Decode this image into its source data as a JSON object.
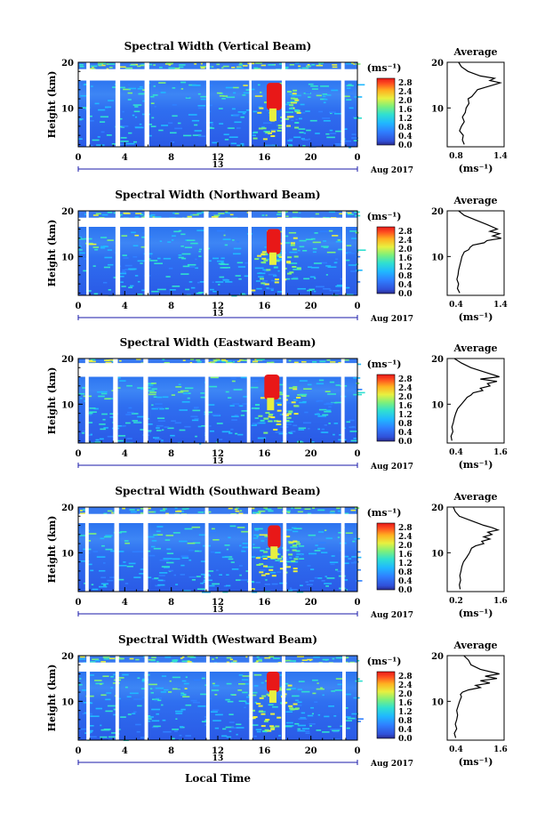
{
  "figure": {
    "xlabel": "Local Time",
    "date_label": "Aug 2017",
    "xticks": [
      "0",
      "4",
      "8",
      "12",
      "16",
      "20",
      "0"
    ],
    "xticks_values": [
      0,
      4,
      8,
      12,
      16,
      20,
      24
    ],
    "day_marker": "13",
    "ylabel": "Height (km)",
    "yticks": [
      "10",
      "20"
    ],
    "colorbar_unit": "(ms⁻¹)",
    "colorbar_ticks": [
      "2.8",
      "2.4",
      "2.0",
      "1.6",
      "1.2",
      "0.8",
      "0.4",
      "0.0"
    ],
    "colorbar_range": [
      0.0,
      3.0
    ],
    "average_title": "Average",
    "average_unit": "(ms⁻¹)",
    "average_yticks": [
      "10",
      "20"
    ]
  },
  "chart_data": [
    {
      "type": "heatmap",
      "title": "Spectral Width (Vertical Beam)",
      "xlabel": "Local Time",
      "ylabel": "Height (km)",
      "xlim": [
        0,
        24
      ],
      "ylim": [
        1.5,
        20
      ],
      "data_gaps_hours": [
        [
          0.7,
          1.0
        ],
        [
          3.2,
          3.6
        ],
        [
          5.7,
          6.1
        ],
        [
          11.0,
          11.3
        ],
        [
          14.7,
          14.9
        ],
        [
          17.5,
          17.8
        ],
        [
          22.6,
          22.9
        ]
      ],
      "no_echo_band_km": [
        16.0,
        18.5
      ],
      "high_width_feature": {
        "time_hours": [
          16.2,
          17.5
        ],
        "height_km": [
          9.5,
          15.5
        ],
        "value": 2.8
      },
      "colorbar": {
        "label": "(ms⁻¹)",
        "min": 0.0,
        "max": 3.0
      }
    },
    {
      "type": "heatmap",
      "title": "Spectral Width (Northward Beam)",
      "xlabel": "Local Time",
      "ylabel": "Height (km)",
      "xlim": [
        0,
        24
      ],
      "ylim": [
        1.5,
        20
      ],
      "data_gaps_hours": [
        [
          0.7,
          0.9
        ],
        [
          3.2,
          3.6
        ],
        [
          5.7,
          6.1
        ],
        [
          10.8,
          11.2
        ],
        [
          14.6,
          14.9
        ],
        [
          17.5,
          17.8
        ],
        [
          22.7,
          23.0
        ]
      ],
      "no_echo_band_km": [
        16.5,
        18.5
      ],
      "high_width_feature": {
        "time_hours": [
          16.2,
          17.4
        ],
        "height_km": [
          10.5,
          16.0
        ],
        "value": 2.8
      },
      "colorbar": {
        "label": "(ms⁻¹)",
        "min": 0.0,
        "max": 3.0
      }
    },
    {
      "type": "heatmap",
      "title": "Spectral Width (Eastward Beam)",
      "xlabel": "Local Time",
      "ylabel": "Height (km)",
      "xlim": [
        0,
        24
      ],
      "ylim": [
        1.5,
        20
      ],
      "data_gaps_hours": [
        [
          0.6,
          0.9
        ],
        [
          3.0,
          3.4
        ],
        [
          5.6,
          6.0
        ],
        [
          10.9,
          11.2
        ],
        [
          14.5,
          14.8
        ],
        [
          17.6,
          17.9
        ],
        [
          22.6,
          22.9
        ]
      ],
      "no_echo_band_km": [
        16.0,
        19.0
      ],
      "high_width_feature": {
        "time_hours": [
          16.0,
          17.3
        ],
        "height_km": [
          11.0,
          16.5
        ],
        "value": 2.8
      },
      "colorbar": {
        "label": "(ms⁻¹)",
        "min": 0.0,
        "max": 3.0
      }
    },
    {
      "type": "heatmap",
      "title": "Spectral Width (Southward Beam)",
      "xlabel": "Local Time",
      "ylabel": "Height (km)",
      "xlim": [
        0,
        24
      ],
      "ylim": [
        1.5,
        20
      ],
      "data_gaps_hours": [
        [
          0.6,
          0.9
        ],
        [
          3.1,
          3.5
        ],
        [
          5.6,
          6.0
        ],
        [
          10.9,
          11.2
        ],
        [
          14.6,
          14.9
        ],
        [
          17.6,
          17.9
        ],
        [
          22.6,
          22.9
        ]
      ],
      "no_echo_band_km": [
        16.5,
        18.5
      ],
      "high_width_feature": {
        "time_hours": [
          16.3,
          17.4
        ],
        "height_km": [
          11.0,
          16.0
        ],
        "value": 2.8
      },
      "colorbar": {
        "label": "(ms⁻¹)",
        "min": 0.0,
        "max": 3.0
      }
    },
    {
      "type": "heatmap",
      "title": "Spectral Width (Westward Beam)",
      "xlabel": "Local Time",
      "ylabel": "Height (km)",
      "xlim": [
        0,
        24
      ],
      "ylim": [
        1.5,
        20
      ],
      "data_gaps_hours": [
        [
          0.7,
          1.0
        ],
        [
          3.2,
          3.5
        ],
        [
          5.7,
          6.0
        ],
        [
          11.0,
          11.3
        ],
        [
          14.7,
          15.0
        ],
        [
          17.5,
          17.8
        ],
        [
          22.7,
          23.0
        ]
      ],
      "no_echo_band_km": [
        16.5,
        18.5
      ],
      "high_width_feature": {
        "time_hours": [
          16.2,
          17.3
        ],
        "height_km": [
          12.0,
          16.5
        ],
        "value": 2.8
      },
      "colorbar": {
        "label": "(ms⁻¹)",
        "min": 0.0,
        "max": 3.0
      }
    },
    {
      "type": "line",
      "title": "Average",
      "panel": "Vertical Beam",
      "xlim": [
        0.8,
        1.4
      ],
      "xticks": [
        "0.8",
        "1.4"
      ],
      "ylim": [
        1.5,
        20
      ],
      "x": [
        0.98,
        0.96,
        0.97,
        0.93,
        0.95,
        0.98,
        0.96,
        0.99,
        1.0,
        1.03,
        1.02,
        1.06,
        1.08,
        1.1,
        1.12,
        1.2,
        1.28,
        1.36,
        1.25,
        1.3,
        1.15,
        1.02,
        0.95,
        0.92
      ],
      "y": [
        2,
        3,
        4,
        5,
        6,
        7,
        8,
        9,
        10,
        11,
        12,
        12.5,
        13,
        13.5,
        14,
        14.5,
        15,
        15.5,
        16,
        16.5,
        17,
        18,
        19,
        20
      ]
    },
    {
      "type": "line",
      "title": "Average",
      "panel": "Northward Beam",
      "xlim": [
        0.4,
        1.4
      ],
      "xticks": [
        "0.4",
        "1.4"
      ],
      "ylim": [
        1.5,
        20
      ],
      "x": [
        0.62,
        0.58,
        0.6,
        0.57,
        0.59,
        0.6,
        0.62,
        0.64,
        0.66,
        0.7,
        0.78,
        0.8,
        0.85,
        1.05,
        1.1,
        1.35,
        1.2,
        1.32,
        1.15,
        1.28,
        1.1,
        0.9,
        0.7,
        0.6
      ],
      "y": [
        2,
        3,
        4,
        5,
        6,
        7,
        8,
        9,
        10,
        11,
        11.5,
        12,
        12.5,
        13,
        13.5,
        14,
        14.5,
        15,
        15.5,
        16,
        17,
        18,
        19,
        20
      ]
    },
    {
      "type": "line",
      "title": "Average",
      "panel": "Eastward Beam",
      "xlim": [
        0.4,
        1.6
      ],
      "xticks": [
        "0.4",
        "1.6"
      ],
      "ylim": [
        1.5,
        20
      ],
      "x": [
        0.5,
        0.48,
        0.52,
        0.5,
        0.53,
        0.55,
        0.58,
        0.62,
        0.7,
        0.78,
        0.82,
        0.9,
        0.95,
        1.15,
        1.1,
        1.3,
        1.25,
        1.45,
        1.1,
        1.5,
        1.2,
        0.9,
        0.7,
        0.55
      ],
      "y": [
        2,
        3,
        4,
        5,
        6,
        7,
        8,
        9,
        10,
        11,
        11.5,
        12,
        12.5,
        13,
        13.5,
        14,
        14.5,
        15,
        15.5,
        16,
        17,
        18,
        19,
        20
      ]
    },
    {
      "type": "line",
      "title": "Average",
      "panel": "Southward Beam",
      "xlim": [
        0.2,
        1.6
      ],
      "xticks": [
        "0.2",
        "1.6"
      ],
      "ylim": [
        1.5,
        20
      ],
      "x": [
        0.52,
        0.5,
        0.53,
        0.51,
        0.54,
        0.56,
        0.6,
        0.68,
        0.75,
        0.8,
        0.9,
        1.1,
        1.05,
        1.25,
        1.1,
        1.3,
        1.2,
        1.45,
        1.3,
        1.1,
        0.8,
        0.5,
        0.4,
        0.35
      ],
      "y": [
        2,
        3,
        4,
        5,
        6,
        7,
        8,
        9,
        10,
        11,
        11.5,
        12,
        12.5,
        13,
        13.5,
        14,
        14.5,
        15,
        15.5,
        16,
        17,
        18,
        19,
        20
      ]
    },
    {
      "type": "line",
      "title": "Average",
      "panel": "Westward Beam",
      "xlim": [
        0.4,
        1.6
      ],
      "xticks": [
        "0.4",
        "1.6"
      ],
      "ylim": [
        1.5,
        20
      ],
      "x": [
        0.58,
        0.55,
        0.6,
        0.57,
        0.6,
        0.62,
        0.6,
        0.63,
        0.66,
        0.7,
        0.68,
        0.72,
        0.85,
        1.1,
        1.0,
        1.3,
        1.1,
        1.45,
        1.2,
        1.5,
        1.1,
        0.9,
        0.85,
        0.75
      ],
      "y": [
        2,
        3,
        4,
        5,
        6,
        7,
        8,
        9,
        10,
        11,
        11.5,
        12,
        12.5,
        13,
        13.5,
        14,
        14.5,
        15,
        15.5,
        16,
        17,
        18,
        19,
        20
      ]
    }
  ]
}
